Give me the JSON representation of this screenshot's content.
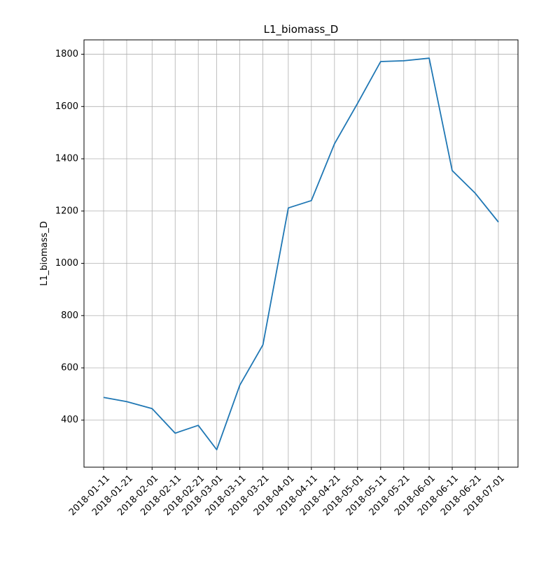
{
  "chart_data": {
    "type": "line",
    "title": "L1_biomass_D",
    "xlabel": "",
    "ylabel": "L1_biomass_D",
    "x_ticks": [
      "2018-01-11",
      "2018-01-21",
      "2018-02-01",
      "2018-02-11",
      "2018-02-21",
      "2018-03-01",
      "2018-03-11",
      "2018-03-21",
      "2018-04-01",
      "2018-04-11",
      "2018-04-21",
      "2018-05-01",
      "2018-05-11",
      "2018-05-21",
      "2018-06-01",
      "2018-06-11",
      "2018-06-21",
      "2018-07-01"
    ],
    "y_ticks": [
      400,
      600,
      800,
      1000,
      1200,
      1400,
      1600,
      1800
    ],
    "ylim": [
      220,
      1855
    ],
    "grid": true,
    "series": [
      {
        "color": "#1f77b4",
        "points": [
          {
            "x": "2018-01-11",
            "y": 487
          },
          {
            "x": "2018-01-21",
            "y": 471
          },
          {
            "x": "2018-02-01",
            "y": 444
          },
          {
            "x": "2018-02-11",
            "y": 350
          },
          {
            "x": "2018-02-21",
            "y": 380
          },
          {
            "x": "2018-03-01",
            "y": 287
          },
          {
            "x": "2018-03-11",
            "y": 534
          },
          {
            "x": "2018-03-21",
            "y": 688
          },
          {
            "x": "2018-04-01",
            "y": 1212
          },
          {
            "x": "2018-04-11",
            "y": 1240
          },
          {
            "x": "2018-04-21",
            "y": 1457
          },
          {
            "x": "2018-05-01",
            "y": 1612
          },
          {
            "x": "2018-05-11",
            "y": 1772
          },
          {
            "x": "2018-05-21",
            "y": 1775
          },
          {
            "x": "2018-06-01",
            "y": 1785
          },
          {
            "x": "2018-06-11",
            "y": 1355
          },
          {
            "x": "2018-06-21",
            "y": 1268
          },
          {
            "x": "2018-07-01",
            "y": 1158
          }
        ]
      }
    ]
  }
}
